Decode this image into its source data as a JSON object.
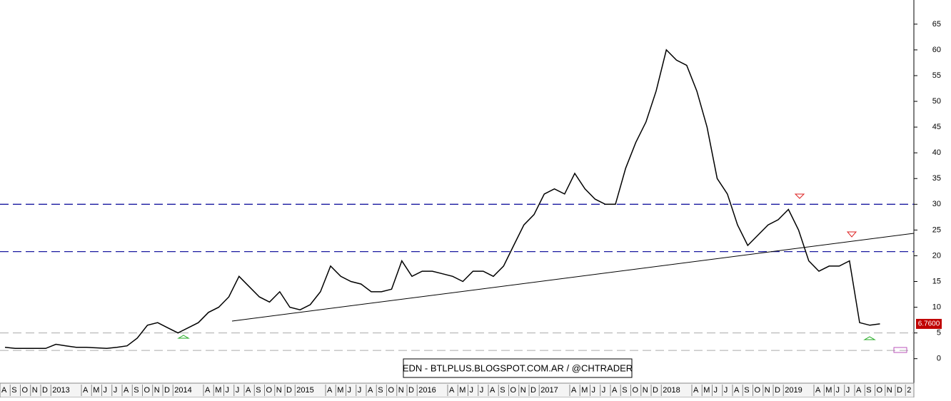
{
  "chart_data": {
    "type": "line",
    "watermark": "EDN - BTLPLUS.BLOGSPOT.COM.AR / @CHTRADER",
    "categories": [
      "A",
      "S",
      "O",
      "N",
      "D",
      "2013",
      null,
      null,
      "A",
      "M",
      "J",
      "J",
      "A",
      "S",
      "O",
      "N",
      "D",
      "2014",
      null,
      null,
      "A",
      "M",
      "J",
      "J",
      "A",
      "S",
      "O",
      "N",
      "D",
      "2015",
      null,
      null,
      "A",
      "M",
      "J",
      "J",
      "A",
      "S",
      "O",
      "N",
      "D",
      "2016",
      null,
      null,
      "A",
      "M",
      "J",
      "J",
      "A",
      "S",
      "O",
      "N",
      "D",
      "2017",
      null,
      null,
      "A",
      "M",
      "J",
      "J",
      "A",
      "S",
      "O",
      "N",
      "D",
      "2018",
      null,
      null,
      "A",
      "M",
      "J",
      "J",
      "A",
      "S",
      "O",
      "N",
      "D",
      "2019",
      null,
      null,
      "A",
      "M",
      "J",
      "J",
      "A",
      "S",
      "O",
      "N",
      "D",
      "2"
    ],
    "values": [
      2.2,
      2.0,
      2.0,
      2.0,
      2.0,
      2.8,
      2.5,
      2.2,
      2.2,
      2.1,
      2.0,
      2.2,
      2.5,
      4,
      6.5,
      7,
      6,
      5,
      6,
      7,
      9,
      10,
      12,
      16,
      14,
      12,
      11,
      13,
      10,
      9.5,
      10.5,
      13,
      18,
      16,
      15,
      14.5,
      13,
      13,
      13.5,
      19,
      16,
      17,
      17,
      16.5,
      16,
      15,
      17,
      17,
      16,
      18,
      22,
      26,
      28,
      32,
      33,
      32,
      36,
      33,
      31,
      30,
      30,
      37,
      42,
      46,
      52,
      60,
      58,
      57,
      52,
      45,
      35,
      32,
      26,
      22,
      24,
      26,
      27,
      29,
      25,
      19,
      17,
      18,
      18,
      19,
      7,
      6.5,
      6.76,
      null,
      null,
      null
    ],
    "color": "#000000",
    "ylim": [
      -2.4,
      69
    ],
    "yticks": [
      0,
      5,
      10,
      15,
      20,
      25,
      30,
      35,
      40,
      45,
      50,
      55,
      60,
      65
    ],
    "reference_lines": [
      {
        "value": 30,
        "color": "#1a1aa0"
      },
      {
        "value": 20.8,
        "color": "#1a1aa0"
      },
      {
        "value": 5,
        "color": "#aaaaaa"
      },
      {
        "value": 1.6,
        "color": "#aaaaaa"
      }
    ],
    "last_price": {
      "value": 6.76,
      "label": "6.7600"
    }
  }
}
